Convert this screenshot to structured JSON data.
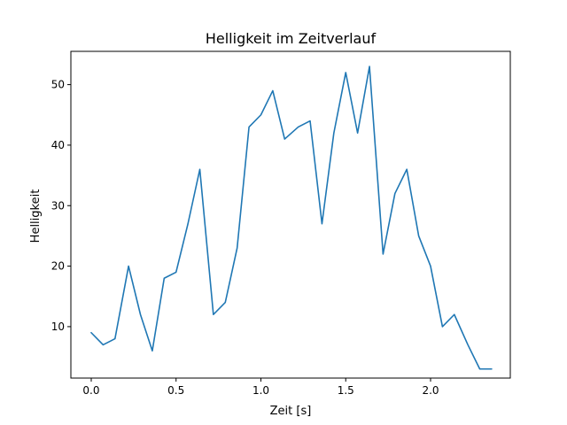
{
  "chart_data": {
    "type": "line",
    "title": "Helligkeit im Zeitverlauf",
    "xlabel": "Zeit [s]",
    "ylabel": "Helligkeit",
    "xlim": [
      -0.12,
      2.47
    ],
    "ylim": [
      1.5,
      55.5
    ],
    "xticks": [
      0.0,
      0.5,
      1.0,
      1.5,
      2.0
    ],
    "xtick_labels": [
      "0.0",
      "0.5",
      "1.0",
      "1.5",
      "2.0"
    ],
    "yticks": [
      10,
      20,
      30,
      40,
      50
    ],
    "ytick_labels": [
      "10",
      "20",
      "30",
      "40",
      "50"
    ],
    "grid": false,
    "series": [
      {
        "color": "#1f77b4",
        "x": [
          0.0,
          0.07,
          0.14,
          0.22,
          0.29,
          0.36,
          0.43,
          0.5,
          0.57,
          0.64,
          0.72,
          0.79,
          0.86,
          0.93,
          1.0,
          1.07,
          1.14,
          1.22,
          1.29,
          1.36,
          1.43,
          1.5,
          1.57,
          1.64,
          1.72,
          1.79,
          1.86,
          1.93,
          2.0,
          2.07,
          2.14,
          2.22,
          2.29,
          2.36
        ],
        "y": [
          9,
          7,
          8,
          20,
          12,
          6,
          18,
          19,
          27,
          36,
          12,
          14,
          23,
          43,
          45,
          49,
          41,
          43,
          44,
          27,
          42,
          52,
          42,
          53,
          22,
          32,
          36,
          25,
          20,
          10,
          12,
          7,
          3,
          3
        ]
      }
    ]
  }
}
